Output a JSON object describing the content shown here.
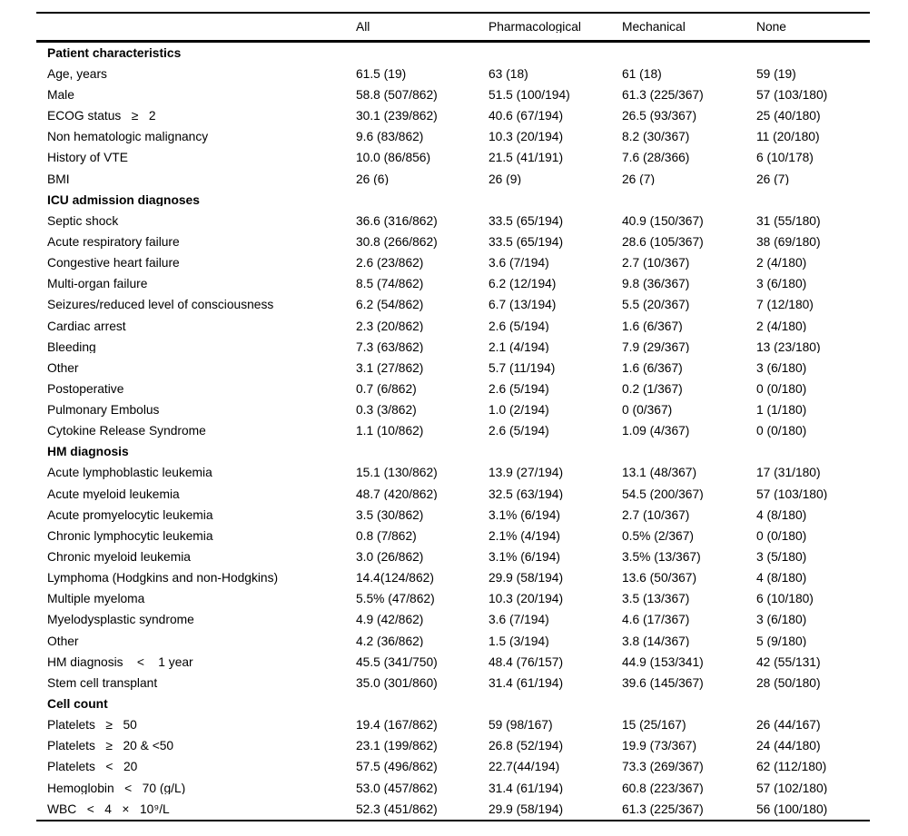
{
  "table": {
    "columns": [
      "All",
      "Pharmacological",
      "Mechanical",
      "None"
    ],
    "sections": [
      {
        "header": "Patient characteristics",
        "rows": [
          {
            "label": "Age, years",
            "values": [
              "61.5 (19)",
              "63 (18)",
              "61 (18)",
              "59 (19)"
            ]
          },
          {
            "label": "Male",
            "values": [
              "58.8 (507/862)",
              "51.5 (100/194)",
              "61.3 (225/367)",
              "57 (103/180)"
            ]
          },
          {
            "label": "ECOG status   ≥   2",
            "values": [
              "30.1 (239/862)",
              "40.6 (67/194)",
              "26.5 (93/367)",
              "25 (40/180)"
            ]
          },
          {
            "label": "Non hematologic malignancy",
            "values": [
              "9.6 (83/862)",
              "10.3 (20/194)",
              "8.2 (30/367)",
              "11 (20/180)"
            ]
          },
          {
            "label": "History of VTE",
            "values": [
              "10.0 (86/856)",
              "21.5 (41/191)",
              "7.6 (28/366)",
              "6 (10/178)"
            ]
          },
          {
            "label": "BMI",
            "values": [
              "26 (6)",
              "26 (9)",
              "26 (7)",
              "26 (7)"
            ]
          }
        ]
      },
      {
        "header": "ICU admission diagnoses",
        "rows": [
          {
            "label": "Septic shock",
            "values": [
              "36.6 (316/862)",
              "33.5 (65/194)",
              "40.9 (150/367)",
              "31 (55/180)"
            ]
          },
          {
            "label": "Acute respiratory failure",
            "values": [
              "30.8 (266/862)",
              "33.5 (65/194)",
              "28.6 (105/367)",
              "38 (69/180)"
            ]
          },
          {
            "label": "Congestive heart failure",
            "values": [
              "2.6 (23/862)",
              "3.6 (7/194)",
              "2.7 (10/367)",
              "2 (4/180)"
            ]
          },
          {
            "label": "Multi-organ failure",
            "values": [
              "8.5 (74/862)",
              "6.2 (12/194)",
              "9.8 (36/367)",
              "3 (6/180)"
            ]
          },
          {
            "label": "Seizures/reduced level of consciousness",
            "values": [
              "6.2 (54/862)",
              "6.7 (13/194)",
              "5.5 (20/367)",
              "7 (12/180)"
            ]
          },
          {
            "label": "Cardiac arrest",
            "values": [
              "2.3 (20/862)",
              "2.6 (5/194)",
              "1.6 (6/367)",
              "2 (4/180)"
            ]
          },
          {
            "label": "Bleeding",
            "values": [
              "7.3 (63/862)",
              "2.1 (4/194)",
              "7.9 (29/367)",
              "13 (23/180)"
            ]
          },
          {
            "label": "Other",
            "values": [
              "3.1 (27/862)",
              "5.7 (11/194)",
              "1.6 (6/367)",
              "3 (6/180)"
            ]
          },
          {
            "label": "Postoperative",
            "values": [
              "0.7 (6/862)",
              "2.6 (5/194)",
              "0.2 (1/367)",
              "0 (0/180)"
            ]
          },
          {
            "label": "Pulmonary Embolus",
            "values": [
              "0.3 (3/862)",
              "1.0 (2/194)",
              "0 (0/367)",
              "1 (1/180)"
            ]
          },
          {
            "label": "Cytokine Release Syndrome",
            "values": [
              "1.1 (10/862)",
              "2.6 (5/194)",
              "1.09 (4/367)",
              "0 (0/180)"
            ]
          }
        ]
      },
      {
        "header": "HM diagnosis",
        "rows": [
          {
            "label": "Acute lymphoblastic leukemia",
            "values": [
              "15.1 (130/862)",
              "13.9 (27/194)",
              "13.1 (48/367)",
              "17 (31/180)"
            ]
          },
          {
            "label": "Acute myeloid leukemia",
            "values": [
              "48.7 (420/862)",
              "32.5 (63/194)",
              "54.5 (200/367)",
              "57 (103/180)"
            ]
          },
          {
            "label": "Acute promyelocytic leukemia",
            "values": [
              "3.5 (30/862)",
              "3.1% (6/194)",
              "2.7 (10/367)",
              "4 (8/180)"
            ]
          },
          {
            "label": "Chronic lymphocytic leukemia",
            "values": [
              "0.8 (7/862)",
              "2.1% (4/194)",
              "0.5% (2/367)",
              "0 (0/180)"
            ]
          },
          {
            "label": "Chronic myeloid leukemia",
            "values": [
              "3.0 (26/862)",
              "3.1% (6/194)",
              "3.5% (13/367)",
              "3 (5/180)"
            ]
          },
          {
            "label": "Lymphoma (Hodgkins and non-Hodgkins)",
            "values": [
              "14.4(124/862)",
              "29.9 (58/194)",
              "13.6 (50/367)",
              "4 (8/180)"
            ]
          },
          {
            "label": "Multiple myeloma",
            "values": [
              "5.5% (47/862)",
              "10.3 (20/194)",
              "3.5 (13/367)",
              "6 (10/180)"
            ]
          },
          {
            "label": "Myelodysplastic syndrome",
            "values": [
              "4.9 (42/862)",
              "3.6 (7/194)",
              "4.6 (17/367)",
              "3 (6/180)"
            ]
          },
          {
            "label": "Other",
            "values": [
              "4.2 (36/862)",
              "1.5 (3/194)",
              "3.8 (14/367)",
              "5 (9/180)"
            ]
          },
          {
            "label": "HM diagnosis    <    1 year",
            "values": [
              "45.5 (341/750)",
              "48.4 (76/157)",
              "44.9 (153/341)",
              "42 (55/131)"
            ]
          },
          {
            "label": "Stem cell transplant",
            "values": [
              "35.0 (301/860)",
              "31.4 (61/194)",
              "39.6 (145/367)",
              "28 (50/180)"
            ]
          }
        ]
      },
      {
        "header": "Cell count",
        "rows": [
          {
            "label": "Platelets   ≥   50",
            "values": [
              "19.4 (167/862)",
              "59 (98/167)",
              "15 (25/167)",
              "26 (44/167)"
            ]
          },
          {
            "label": "Platelets   ≥   20 & <50",
            "values": [
              "23.1 (199/862)",
              "26.8 (52/194)",
              "19.9 (73/367)",
              "24 (44/180)"
            ]
          },
          {
            "label": "Platelets   <   20",
            "values": [
              "57.5 (496/862)",
              "22.7(44/194)",
              "73.3 (269/367)",
              "62 (112/180)"
            ]
          },
          {
            "label": "Hemoglobin   <   70 (g/L)",
            "values": [
              "53.0 (457/862)",
              "31.4 (61/194)",
              "60.8 (223/367)",
              "57 (102/180)"
            ]
          },
          {
            "label": "WBC   <   4   ×   10⁹/L",
            "values": [
              "52.3 (451/862)",
              "29.9 (58/194)",
              "61.3 (225/367)",
              "56 (100/180)"
            ]
          }
        ]
      }
    ]
  }
}
